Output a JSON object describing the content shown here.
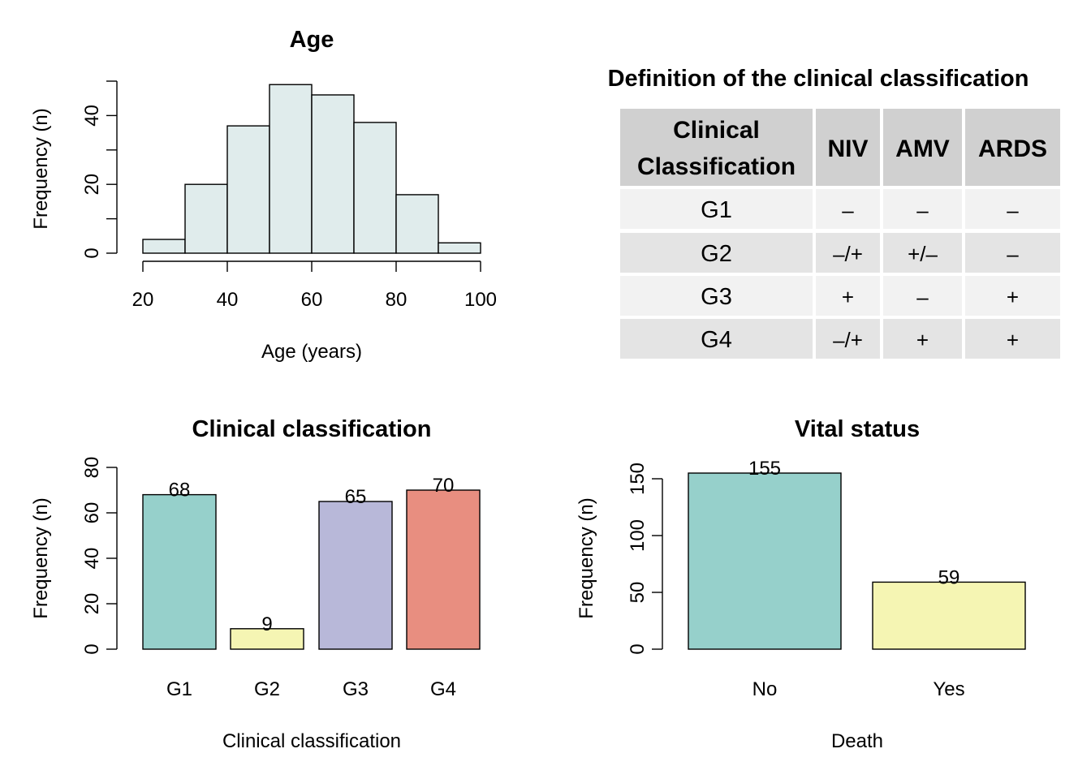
{
  "chart_data": [
    {
      "type": "bar",
      "id": "age",
      "title": "Age",
      "xlabel": "Age (years)",
      "ylabel": "Frequency (n)",
      "bins": [
        [
          20,
          30
        ],
        [
          30,
          40
        ],
        [
          40,
          50
        ],
        [
          50,
          60
        ],
        [
          60,
          70
        ],
        [
          70,
          80
        ],
        [
          80,
          90
        ],
        [
          90,
          100
        ]
      ],
      "values": [
        4,
        20,
        37,
        49,
        46,
        38,
        17,
        3
      ],
      "x_ticks": [
        "20",
        "40",
        "60",
        "80",
        "100"
      ],
      "y_ticks": [
        "0",
        "20",
        "40"
      ],
      "xlim": [
        20,
        100
      ],
      "ylim": [
        0,
        50
      ],
      "color": "#e0ecec"
    },
    {
      "type": "table",
      "id": "definition",
      "title": "Definition of the clinical classification",
      "columns": [
        "Clinical Classification",
        "NIV",
        "AMV",
        "ARDS"
      ],
      "rows": [
        [
          "G1",
          "–",
          "–",
          "–"
        ],
        [
          "G2",
          "–/+",
          "+/–",
          "–"
        ],
        [
          "G3",
          "+",
          "–",
          "+"
        ],
        [
          "G4",
          "–/+",
          "+",
          "+"
        ]
      ]
    },
    {
      "type": "bar",
      "id": "clinical",
      "title": "Clinical classification",
      "xlabel": "Clinical classification",
      "ylabel": "Frequency (n)",
      "categories": [
        "G1",
        "G2",
        "G3",
        "G4"
      ],
      "values": [
        68,
        9,
        65,
        70
      ],
      "value_labels": [
        "68",
        "9",
        "65",
        "70"
      ],
      "colors": [
        "#96d0cb",
        "#f5f5b3",
        "#b8b8d9",
        "#e88e80"
      ],
      "y_ticks": [
        "0",
        "20",
        "40",
        "60",
        "80"
      ],
      "ylim": [
        0,
        80
      ]
    },
    {
      "type": "bar",
      "id": "vital",
      "title": "Vital status",
      "xlabel": "Death",
      "ylabel": "Frequency (n)",
      "categories": [
        "No",
        "Yes"
      ],
      "values": [
        155,
        59
      ],
      "value_labels": [
        "155",
        "59"
      ],
      "colors": [
        "#96d0cb",
        "#f5f5b3"
      ],
      "y_ticks": [
        "0",
        "50",
        "100",
        "150"
      ],
      "ylim": [
        0,
        150
      ]
    }
  ]
}
